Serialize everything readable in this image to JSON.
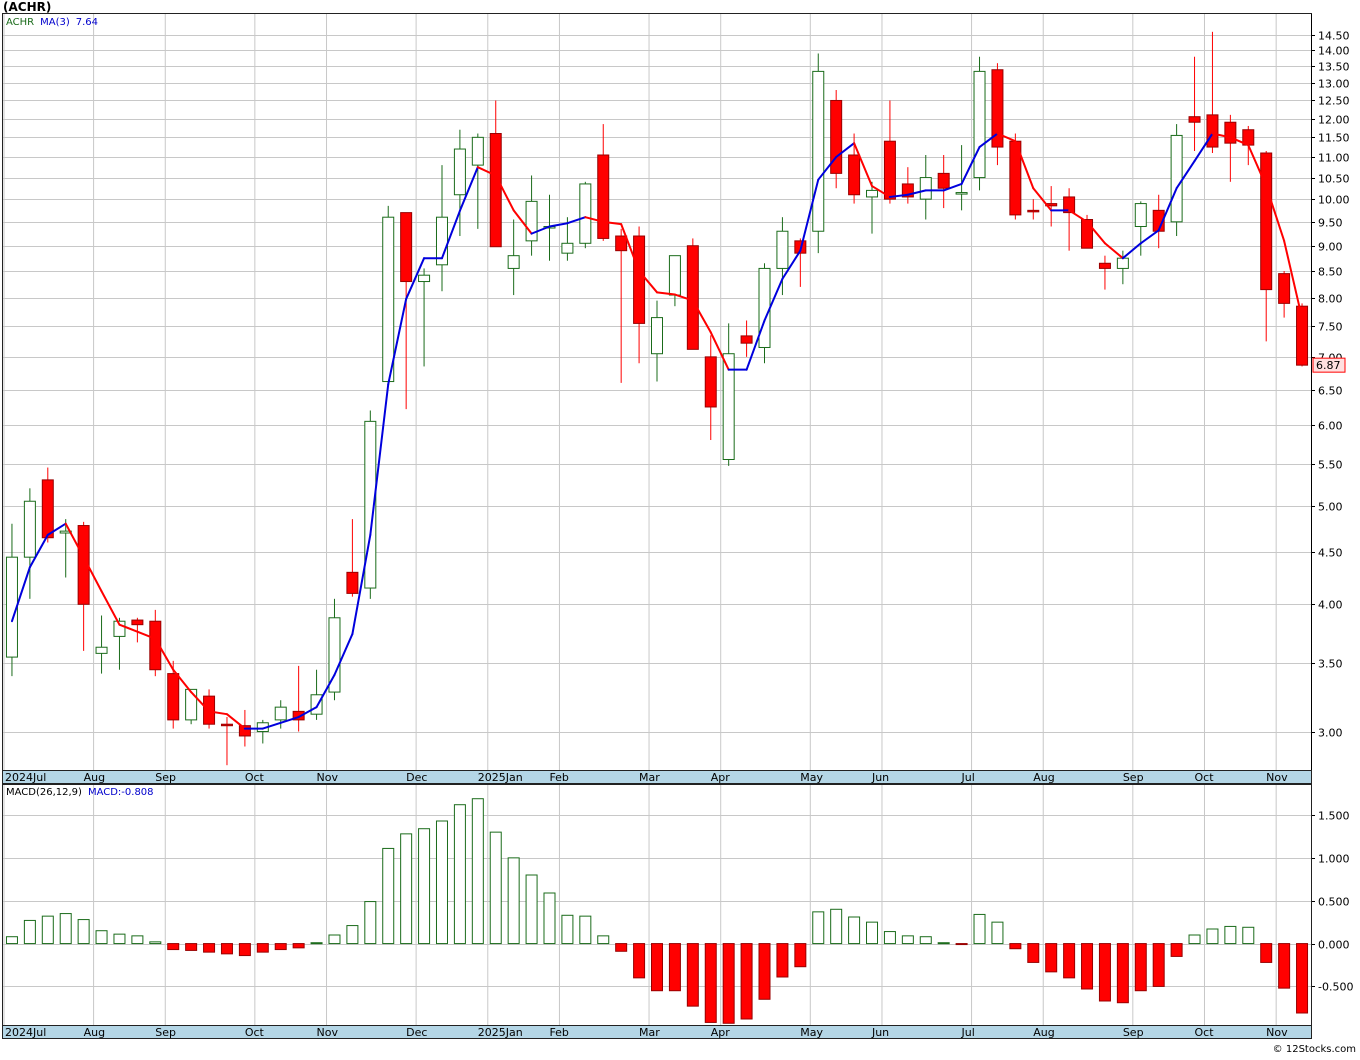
{
  "chart_title": "(ACHR)",
  "legend": {
    "symbol": "ACHR",
    "ma_label": "MA(3)",
    "ma_value": "7.64",
    "macd_label": "MACD(26,12,9)",
    "macd_value_label": "MACD:-0.808"
  },
  "last_price_tag": "6.87",
  "footer": "© 12Stocks.com",
  "colors": {
    "up": "#1a6b1a",
    "down": "#ff0000",
    "ma_up": "#0000dd",
    "ma_down": "#ff0000",
    "grid": "#c8c8c8",
    "axis_band": "#b4d6e6",
    "frame": "#222222"
  },
  "chart_data": [
    {
      "type": "candlestick",
      "name": "ACHR",
      "scale": "log",
      "ylim": [
        2.75,
        15.2
      ],
      "y_ticks": [
        "3.00",
        "3.50",
        "4.00",
        "4.50",
        "5.00",
        "5.50",
        "6.00",
        "6.50",
        "7.00",
        "7.50",
        "8.00",
        "8.50",
        "9.00",
        "9.50",
        "10.00",
        "10.50",
        "11.00",
        "11.50",
        "12.00",
        "12.50",
        "13.00",
        "13.50",
        "14.00",
        "14.50"
      ],
      "x_labels": [
        "2024Jul",
        "Aug",
        "Sep",
        "Oct",
        "Nov",
        "Dec",
        "2025Jan",
        "Feb",
        "Mar",
        "Apr",
        "May",
        "Jun",
        "Jul",
        "Aug",
        "Sep",
        "Oct",
        "Nov"
      ],
      "candles": [
        {
          "o": 3.55,
          "h": 4.8,
          "l": 3.4,
          "c": 4.45
        },
        {
          "o": 4.45,
          "h": 5.2,
          "l": 4.05,
          "c": 5.05
        },
        {
          "o": 5.3,
          "h": 5.45,
          "l": 4.6,
          "c": 4.65
        },
        {
          "o": 4.7,
          "h": 4.85,
          "l": 4.25,
          "c": 4.72
        },
        {
          "o": 4.78,
          "h": 4.82,
          "l": 3.6,
          "c": 4.0
        },
        {
          "o": 3.58,
          "h": 3.9,
          "l": 3.42,
          "c": 3.63
        },
        {
          "o": 3.72,
          "h": 3.88,
          "l": 3.45,
          "c": 3.85
        },
        {
          "o": 3.86,
          "h": 3.88,
          "l": 3.67,
          "c": 3.82
        },
        {
          "o": 3.85,
          "h": 3.95,
          "l": 3.4,
          "c": 3.45
        },
        {
          "o": 3.42,
          "h": 3.52,
          "l": 3.02,
          "c": 3.08
        },
        {
          "o": 3.08,
          "h": 3.28,
          "l": 3.05,
          "c": 3.3
        },
        {
          "o": 3.25,
          "h": 3.3,
          "l": 3.02,
          "c": 3.05
        },
        {
          "o": 3.05,
          "h": 3.1,
          "l": 2.78,
          "c": 3.04
        },
        {
          "o": 3.04,
          "h": 3.15,
          "l": 2.9,
          "c": 2.97
        },
        {
          "o": 3.0,
          "h": 3.08,
          "l": 2.92,
          "c": 3.06
        },
        {
          "o": 3.08,
          "h": 3.22,
          "l": 3.02,
          "c": 3.17
        },
        {
          "o": 3.14,
          "h": 3.48,
          "l": 3.0,
          "c": 3.08
        },
        {
          "o": 3.12,
          "h": 3.45,
          "l": 3.08,
          "c": 3.26
        },
        {
          "o": 3.28,
          "h": 4.05,
          "l": 3.22,
          "c": 3.88
        },
        {
          "o": 4.3,
          "h": 4.85,
          "l": 4.07,
          "c": 4.1
        },
        {
          "o": 4.15,
          "h": 6.2,
          "l": 4.05,
          "c": 6.05
        },
        {
          "o": 6.62,
          "h": 9.85,
          "l": 6.6,
          "c": 9.6
        },
        {
          "o": 9.7,
          "h": 9.7,
          "l": 6.22,
          "c": 8.3
        },
        {
          "o": 8.3,
          "h": 8.55,
          "l": 6.85,
          "c": 8.42
        },
        {
          "o": 8.62,
          "h": 10.8,
          "l": 8.12,
          "c": 9.6
        },
        {
          "o": 10.1,
          "h": 11.7,
          "l": 9.2,
          "c": 11.2
        },
        {
          "o": 10.8,
          "h": 11.6,
          "l": 9.35,
          "c": 11.5
        },
        {
          "o": 11.6,
          "h": 12.5,
          "l": 9.0,
          "c": 8.98
        },
        {
          "o": 8.55,
          "h": 9.55,
          "l": 8.05,
          "c": 8.8
        },
        {
          "o": 9.1,
          "h": 10.55,
          "l": 8.8,
          "c": 9.95
        },
        {
          "o": 9.4,
          "h": 10.1,
          "l": 8.7,
          "c": 9.4
        },
        {
          "o": 8.85,
          "h": 9.6,
          "l": 8.7,
          "c": 9.05
        },
        {
          "o": 9.05,
          "h": 10.4,
          "l": 8.95,
          "c": 10.35
        },
        {
          "o": 11.05,
          "h": 11.85,
          "l": 9.1,
          "c": 9.15
        },
        {
          "o": 9.2,
          "h": 9.35,
          "l": 6.6,
          "c": 8.9
        },
        {
          "o": 9.2,
          "h": 9.4,
          "l": 6.9,
          "c": 7.55
        },
        {
          "o": 7.05,
          "h": 7.95,
          "l": 6.62,
          "c": 7.65
        },
        {
          "o": 8.05,
          "h": 8.8,
          "l": 7.85,
          "c": 8.8
        },
        {
          "o": 9.0,
          "h": 9.15,
          "l": 7.2,
          "c": 7.12
        },
        {
          "o": 7.0,
          "h": 7.35,
          "l": 5.8,
          "c": 6.25
        },
        {
          "o": 5.55,
          "h": 7.55,
          "l": 5.47,
          "c": 7.05
        },
        {
          "o": 7.34,
          "h": 7.6,
          "l": 7.0,
          "c": 7.22
        },
        {
          "o": 7.15,
          "h": 8.65,
          "l": 6.9,
          "c": 8.55
        },
        {
          "o": 8.55,
          "h": 9.6,
          "l": 8.05,
          "c": 9.3
        },
        {
          "o": 9.1,
          "h": 9.15,
          "l": 8.2,
          "c": 8.85
        },
        {
          "o": 9.3,
          "h": 13.9,
          "l": 8.85,
          "c": 13.35
        },
        {
          "o": 12.5,
          "h": 12.8,
          "l": 10.25,
          "c": 10.6
        },
        {
          "o": 11.05,
          "h": 11.6,
          "l": 9.9,
          "c": 10.1
        },
        {
          "o": 10.05,
          "h": 10.4,
          "l": 9.25,
          "c": 10.2
        },
        {
          "o": 11.4,
          "h": 12.5,
          "l": 9.9,
          "c": 10.0
        },
        {
          "o": 10.35,
          "h": 10.75,
          "l": 9.9,
          "c": 10.05
        },
        {
          "o": 10.0,
          "h": 11.05,
          "l": 9.55,
          "c": 10.5
        },
        {
          "o": 10.6,
          "h": 11.05,
          "l": 9.8,
          "c": 10.25
        },
        {
          "o": 10.15,
          "h": 11.3,
          "l": 9.75,
          "c": 10.15
        },
        {
          "o": 10.5,
          "h": 13.8,
          "l": 10.2,
          "c": 13.35
        },
        {
          "o": 13.4,
          "h": 13.6,
          "l": 10.8,
          "c": 11.25
        },
        {
          "o": 11.4,
          "h": 11.6,
          "l": 9.55,
          "c": 9.65
        },
        {
          "o": 9.75,
          "h": 10.0,
          "l": 9.55,
          "c": 9.73
        },
        {
          "o": 9.9,
          "h": 10.3,
          "l": 9.4,
          "c": 9.85
        },
        {
          "o": 10.05,
          "h": 10.25,
          "l": 8.9,
          "c": 9.7
        },
        {
          "o": 9.55,
          "h": 9.65,
          "l": 8.95,
          "c": 8.95
        },
        {
          "o": 8.65,
          "h": 8.8,
          "l": 8.15,
          "c": 8.55
        },
        {
          "o": 8.55,
          "h": 8.9,
          "l": 8.25,
          "c": 8.75
        },
        {
          "o": 9.4,
          "h": 9.95,
          "l": 8.8,
          "c": 9.9
        },
        {
          "o": 9.75,
          "h": 10.1,
          "l": 8.95,
          "c": 9.3
        },
        {
          "o": 9.5,
          "h": 11.85,
          "l": 9.2,
          "c": 11.55
        },
        {
          "o": 12.05,
          "h": 13.8,
          "l": 11.15,
          "c": 11.9
        },
        {
          "o": 12.1,
          "h": 14.6,
          "l": 11.1,
          "c": 11.25
        },
        {
          "o": 11.9,
          "h": 12.1,
          "l": 10.4,
          "c": 11.35
        },
        {
          "o": 11.7,
          "h": 11.8,
          "l": 10.8,
          "c": 11.3
        },
        {
          "o": 11.1,
          "h": 11.15,
          "l": 7.25,
          "c": 8.15
        },
        {
          "o": 8.45,
          "h": 8.5,
          "l": 7.65,
          "c": 7.9
        },
        {
          "o": 7.85,
          "h": 7.9,
          "l": 6.85,
          "c": 6.87
        }
      ],
      "ma3": [
        3.85,
        4.35,
        4.68,
        4.8,
        4.45,
        4.12,
        3.82,
        3.76,
        3.7,
        3.45,
        3.28,
        3.14,
        3.12,
        3.02,
        3.02,
        3.06,
        3.1,
        3.17,
        3.41,
        3.74,
        4.68,
        6.58,
        7.98,
        8.75,
        8.75,
        9.74,
        10.75,
        10.55,
        9.75,
        9.25,
        9.4,
        9.47,
        9.6,
        9.5,
        9.45,
        8.5,
        8.1,
        8.06,
        7.95,
        7.4,
        6.8,
        6.8,
        7.6,
        8.35,
        8.9,
        10.45,
        11.0,
        11.35,
        10.3,
        10.05,
        10.1,
        10.2,
        10.2,
        10.35,
        11.25,
        11.6,
        11.4,
        10.25,
        9.75,
        9.75,
        9.5,
        9.05,
        8.75,
        9.05,
        9.32,
        10.25,
        10.9,
        11.6,
        11.5,
        11.3,
        10.3,
        9.1,
        7.64
      ]
    },
    {
      "type": "bar",
      "name": "MACD(26,12,9)",
      "ylim": [
        -0.95,
        1.85
      ],
      "y_ticks": [
        "1.500",
        "1.000",
        "0.500",
        "0.000",
        "-0.500"
      ],
      "x_labels": [
        "2024Jul",
        "Aug",
        "Sep",
        "Oct",
        "Nov",
        "Dec",
        "2025Jan",
        "Feb",
        "Mar",
        "Apr",
        "May",
        "Jun",
        "Jul",
        "Aug",
        "Sep",
        "Oct",
        "Nov"
      ],
      "values": [
        0.08,
        0.27,
        0.32,
        0.35,
        0.28,
        0.15,
        0.11,
        0.09,
        0.02,
        -0.07,
        -0.08,
        -0.1,
        -0.12,
        -0.14,
        -0.1,
        -0.07,
        -0.05,
        0.01,
        0.1,
        0.21,
        0.49,
        1.11,
        1.28,
        1.34,
        1.43,
        1.62,
        1.69,
        1.3,
        1.0,
        0.8,
        0.59,
        0.33,
        0.32,
        0.09,
        -0.09,
        -0.4,
        -0.55,
        -0.55,
        -0.73,
        -0.92,
        -0.93,
        -0.88,
        -0.65,
        -0.39,
        -0.27,
        0.37,
        0.4,
        0.31,
        0.25,
        0.14,
        0.09,
        0.08,
        0.01,
        -0.01,
        0.34,
        0.25,
        -0.06,
        -0.22,
        -0.33,
        -0.4,
        -0.53,
        -0.67,
        -0.69,
        -0.55,
        -0.5,
        -0.15,
        0.1,
        0.17,
        0.2,
        0.19,
        -0.22,
        -0.52,
        -0.81
      ]
    }
  ]
}
